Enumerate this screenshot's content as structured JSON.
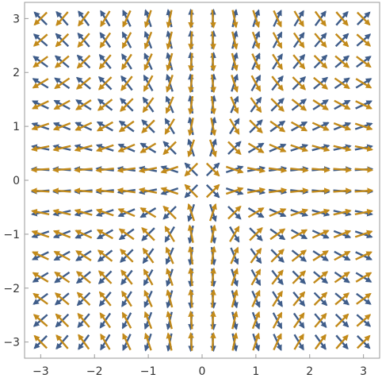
{
  "chart_data": {
    "type": "vector_field",
    "title": "",
    "xlabel": "",
    "ylabel": "",
    "xlim": [
      -3.3,
      3.3
    ],
    "ylim": [
      -3.3,
      3.3
    ],
    "grid": false,
    "legend": "none",
    "x_ticks": [
      {
        "value": -3,
        "label": "−3"
      },
      {
        "value": -2,
        "label": "−2"
      },
      {
        "value": -1,
        "label": "−1"
      },
      {
        "value": 0,
        "label": "0"
      },
      {
        "value": 1,
        "label": "1"
      },
      {
        "value": 2,
        "label": "2"
      },
      {
        "value": 3,
        "label": "3"
      }
    ],
    "y_ticks": [
      {
        "value": -3,
        "label": "−3"
      },
      {
        "value": -2,
        "label": "−2"
      },
      {
        "value": -1,
        "label": "−1"
      },
      {
        "value": 0,
        "label": "0"
      },
      {
        "value": 1,
        "label": "1"
      },
      {
        "value": 2,
        "label": "2"
      },
      {
        "value": 3,
        "label": "3"
      }
    ],
    "sample_x": [
      -3,
      -2.6,
      -2.2,
      -1.8,
      -1.4,
      -1.0,
      -0.6,
      -0.2,
      0.2,
      0.6,
      1.0,
      1.4,
      1.8,
      2.2,
      2.6,
      3.0
    ],
    "sample_y": [
      -3,
      -2.6,
      -2.2,
      -1.8,
      -1.4,
      -1.0,
      -0.6,
      -0.2,
      0.2,
      0.6,
      1.0,
      1.4,
      1.8,
      2.2,
      2.6,
      3.0
    ],
    "series": [
      {
        "field": "(x, y)",
        "color": "#3f5d8a"
      },
      {
        "field": "(x, -y)",
        "color": "#c28a1a"
      }
    ]
  }
}
